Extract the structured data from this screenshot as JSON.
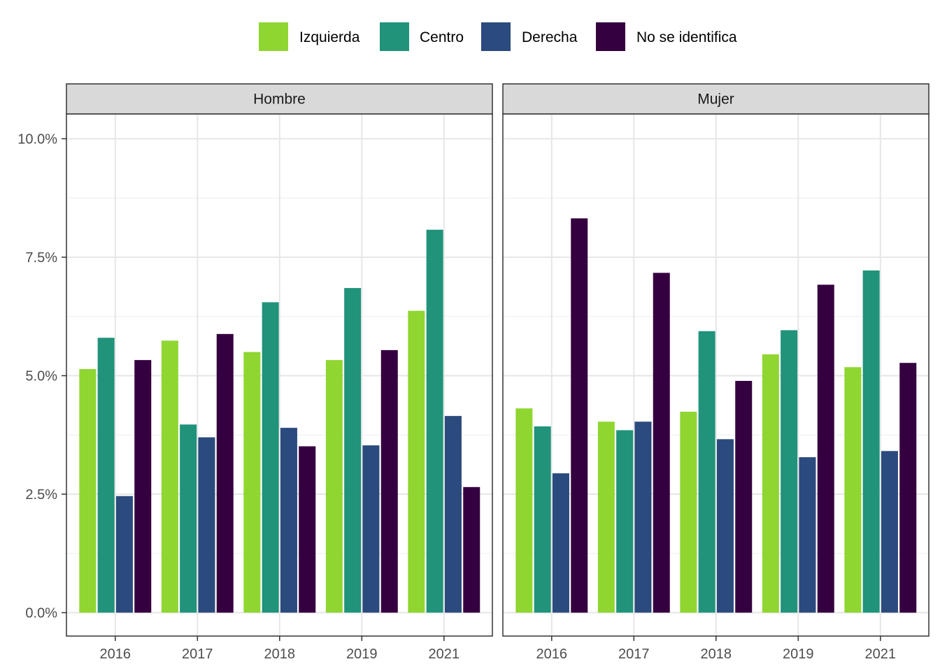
{
  "chart_data": {
    "type": "bar",
    "y_format": "percent",
    "ylim": [
      0,
      0.11
    ],
    "y_ticks": [
      0.0,
      0.025,
      0.05,
      0.075,
      0.1
    ],
    "y_tick_labels": [
      "0.0%",
      "2.5%",
      "5.0%",
      "7.5%",
      "10.0%"
    ],
    "categories": [
      "2016",
      "2017",
      "2018",
      "2019",
      "2021"
    ],
    "legend": {
      "position": "top",
      "entries": [
        {
          "name": "Izquierda",
          "color": "#8FD631"
        },
        {
          "name": "Centro",
          "color": "#20937A"
        },
        {
          "name": "Derecha",
          "color": "#2B4A7D"
        },
        {
          "name": "No se identifica",
          "color": "#35003F"
        }
      ]
    },
    "panels": [
      {
        "title": "Hombre",
        "series": [
          {
            "name": "Izquierda",
            "values": [
              0.0514,
              0.0574,
              0.055,
              0.0533,
              0.0637
            ]
          },
          {
            "name": "Centro",
            "values": [
              0.058,
              0.0397,
              0.0655,
              0.0685,
              0.0808
            ]
          },
          {
            "name": "Derecha",
            "values": [
              0.0246,
              0.037,
              0.039,
              0.0353,
              0.0415
            ]
          },
          {
            "name": "No se identifica",
            "values": [
              0.0533,
              0.0588,
              0.0351,
              0.0554,
              0.0265
            ]
          }
        ]
      },
      {
        "title": "Mujer",
        "series": [
          {
            "name": "Izquierda",
            "values": [
              0.0431,
              0.0403,
              0.0424,
              0.0545,
              0.0518
            ]
          },
          {
            "name": "Centro",
            "values": [
              0.0393,
              0.0385,
              0.0594,
              0.0596,
              0.0722
            ]
          },
          {
            "name": "Derecha",
            "values": [
              0.0294,
              0.0403,
              0.0366,
              0.0328,
              0.0341
            ]
          },
          {
            "name": "No se identifica",
            "values": [
              0.0832,
              0.0717,
              0.0489,
              0.0692,
              0.0527
            ]
          }
        ]
      }
    ]
  }
}
